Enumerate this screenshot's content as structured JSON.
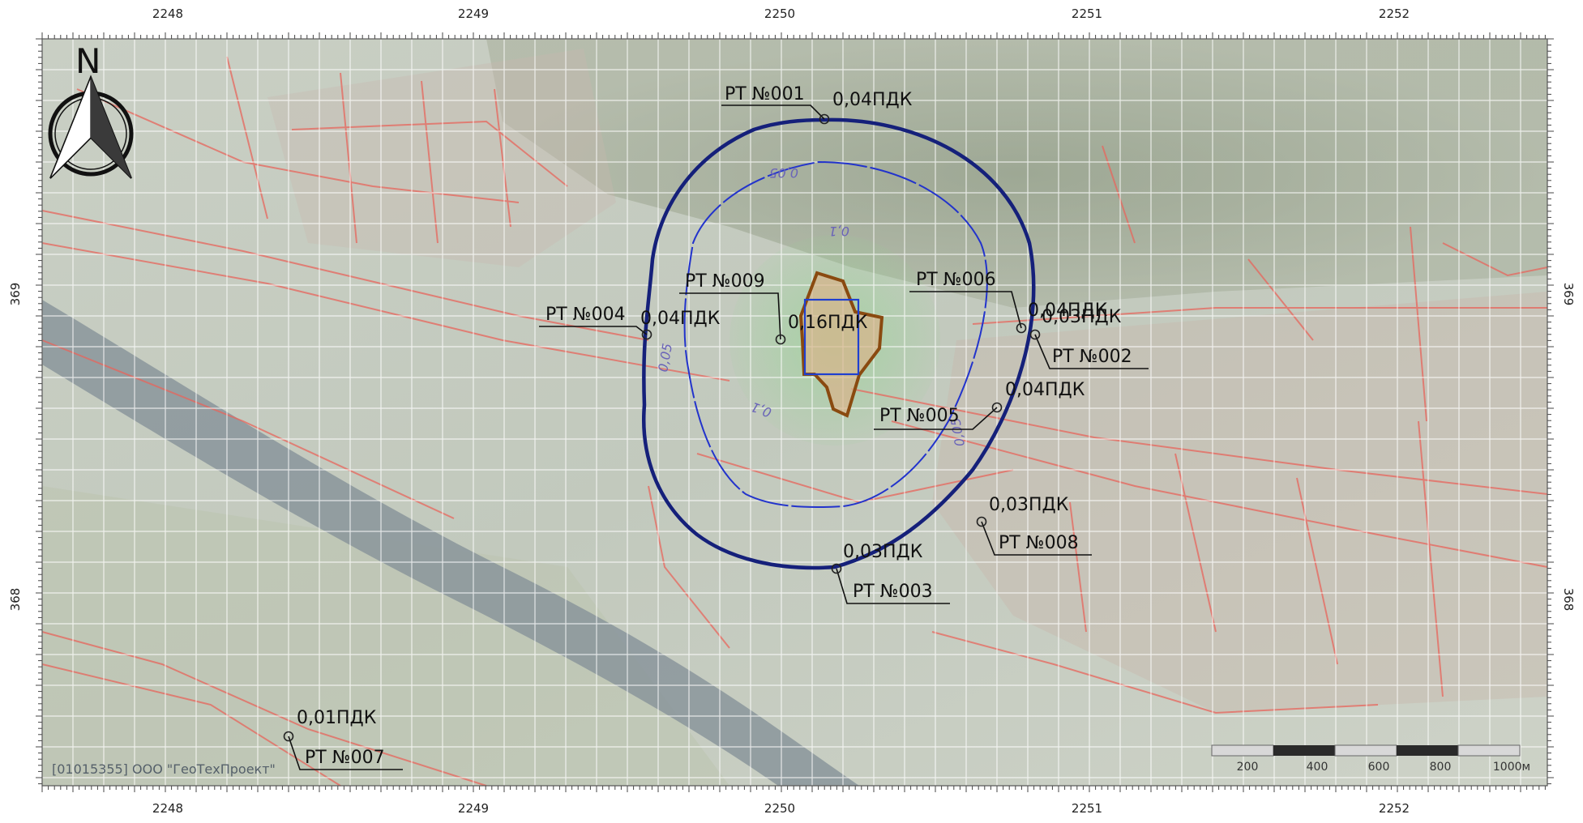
{
  "map": {
    "grid_x_labels": [
      "2248",
      "2249",
      "2250",
      "2251",
      "2252"
    ],
    "grid_y_labels": [
      "369",
      "368"
    ],
    "north_label": "N",
    "copyright": "[01015355] ООО \"ГеоТехПроект\"",
    "isolines": [
      {
        "name": "0,03 ПДК isoline",
        "color": "#1e2a8a"
      },
      {
        "name": "0,05 ПДК isoline",
        "label": "0,05",
        "color": "#2c3cd6"
      },
      {
        "name": "0,1 ПДК isoline",
        "label": "0,1",
        "color": "#5fbf5f"
      }
    ],
    "isoline_labels": {
      "outer_top": "0,05",
      "inner_top": "0,1",
      "left": "0,05",
      "bottom_inner": "0,1",
      "right": "0,05"
    },
    "points": [
      {
        "id": "PT001",
        "name": "РТ №001",
        "value": "0,04ПДК"
      },
      {
        "id": "PT002",
        "name": "РТ №002",
        "value": "0,03ПДК"
      },
      {
        "id": "PT003",
        "name": "РТ №003",
        "value": "0,03ПДК"
      },
      {
        "id": "PT004",
        "name": "РТ №004",
        "value": "0,04ПДК"
      },
      {
        "id": "PT005",
        "name": "РТ №005",
        "value": "0,04ПДК"
      },
      {
        "id": "PT006",
        "name": "РТ №006",
        "value": "0,04ПДК"
      },
      {
        "id": "PT007",
        "name": "РТ №007",
        "value": "0,01ПДК"
      },
      {
        "id": "PT008",
        "name": "РТ №008",
        "value": "0,03ПДК"
      },
      {
        "id": "PT009",
        "name": "РТ №009",
        "value": "0,16ПДК"
      }
    ],
    "scale_bar": {
      "labels": [
        "200",
        "400",
        "600",
        "800",
        "1000м"
      ]
    },
    "colors": {
      "boundary_red": "#e8655c",
      "source_outline": "#8a4a10",
      "source_fill": "#d9b38a",
      "source_rect": "#1f3fd0",
      "outer_ellipse": "#15207a",
      "inner_ellipse": "#2233cc",
      "green_zone": "#6fcf6f"
    }
  }
}
